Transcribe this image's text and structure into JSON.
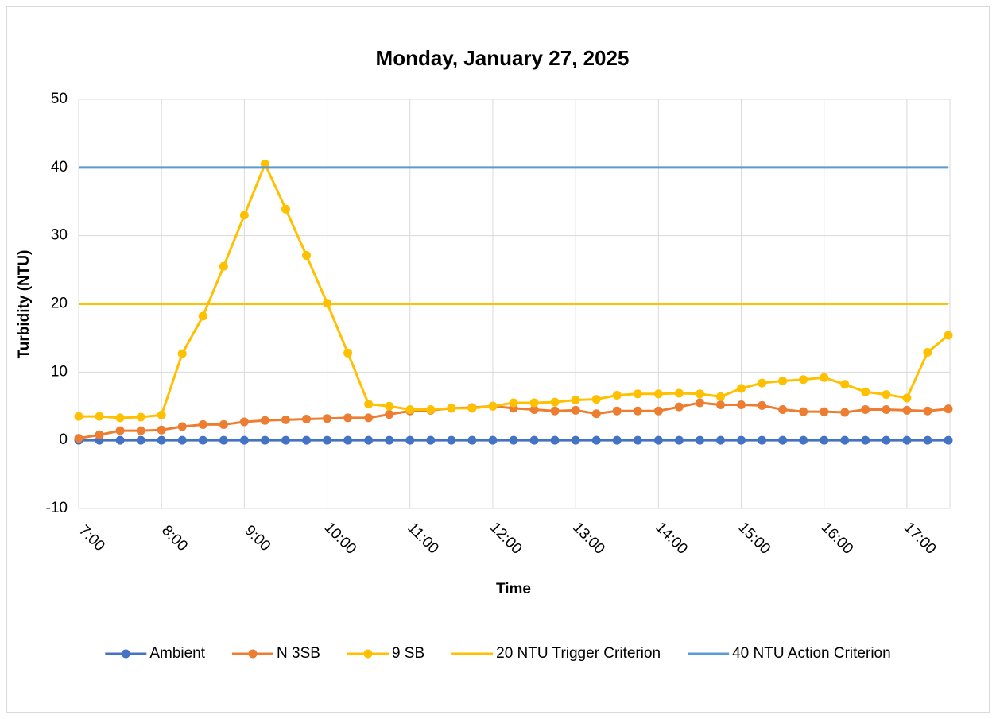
{
  "chart_data": {
    "type": "line",
    "title": "Monday, January 27, 2025",
    "x_label": "Time",
    "y_label": "Turbidity (NTU)",
    "x": [
      7,
      7.25,
      7.5,
      7.75,
      8,
      8.25,
      8.5,
      8.75,
      9,
      9.25,
      9.5,
      9.75,
      10,
      10.25,
      10.5,
      10.75,
      11,
      11.25,
      11.5,
      11.75,
      12,
      12.25,
      12.5,
      12.75,
      13,
      13.25,
      13.5,
      13.75,
      14,
      14.25,
      14.5,
      14.75,
      15,
      15.25,
      15.5,
      15.75,
      16,
      16.25,
      16.5,
      16.75,
      17,
      17.25,
      17.5
    ],
    "xlim": [
      7,
      17.5
    ],
    "xticks": [
      {
        "value": 7,
        "label": "7:00"
      },
      {
        "value": 8,
        "label": "8:00"
      },
      {
        "value": 9,
        "label": "9:00"
      },
      {
        "value": 10,
        "label": "10:00"
      },
      {
        "value": 11,
        "label": "11:00"
      },
      {
        "value": 12,
        "label": "12:00"
      },
      {
        "value": 13,
        "label": "13:00"
      },
      {
        "value": 14,
        "label": "14:00"
      },
      {
        "value": 15,
        "label": "15:00"
      },
      {
        "value": 16,
        "label": "16:00"
      },
      {
        "value": 17,
        "label": "17:00"
      }
    ],
    "ylim": [
      -10,
      50
    ],
    "yticks": [
      -10,
      0,
      10,
      20,
      30,
      40,
      50
    ],
    "grid": true,
    "legend": "bottom",
    "series": [
      {
        "name": "Ambient",
        "color": "#4472c4",
        "marker": true,
        "values": [
          0,
          0,
          0,
          0,
          0,
          0,
          0,
          0,
          0,
          0,
          0,
          0,
          0,
          0,
          0,
          0,
          0,
          0,
          0,
          0,
          0,
          0,
          0,
          0,
          0,
          0,
          0,
          0,
          0,
          0,
          0,
          0,
          0,
          0,
          0,
          0,
          0,
          0,
          0,
          0,
          0,
          0,
          0
        ]
      },
      {
        "name": "N 3SB",
        "color": "#ed7d31",
        "marker": true,
        "values": [
          0.3,
          0.8,
          1.4,
          1.4,
          1.5,
          2.0,
          2.3,
          2.3,
          2.7,
          2.9,
          3.0,
          3.1,
          3.2,
          3.3,
          3.3,
          3.8,
          4.3,
          4.4,
          4.7,
          4.8,
          5.0,
          4.7,
          4.5,
          4.3,
          4.4,
          3.9,
          4.3,
          4.3,
          4.3,
          4.9,
          5.5,
          5.2,
          5.2,
          5.1,
          4.5,
          4.2,
          4.2,
          4.1,
          4.5,
          4.5,
          4.4,
          4.3,
          4.6
        ]
      },
      {
        "name": "9 SB",
        "color": "#ffc000",
        "marker": true,
        "values": [
          3.5,
          3.5,
          3.3,
          3.4,
          3.7,
          12.7,
          18.2,
          25.5,
          33.0,
          40.5,
          33.9,
          27.1,
          20.1,
          12.8,
          5.3,
          5.0,
          4.5,
          4.5,
          4.7,
          4.7,
          5.0,
          5.5,
          5.5,
          5.6,
          5.9,
          6.0,
          6.6,
          6.8,
          6.8,
          6.9,
          6.8,
          6.4,
          7.6,
          8.4,
          8.7,
          8.9,
          9.2,
          8.2,
          7.1,
          6.7,
          6.2,
          12.9,
          15.4
        ]
      },
      {
        "name": "20 NTU Trigger Criterion",
        "color": "#ffc000",
        "marker": false,
        "values": [
          20,
          20,
          20,
          20,
          20,
          20,
          20,
          20,
          20,
          20,
          20,
          20,
          20,
          20,
          20,
          20,
          20,
          20,
          20,
          20,
          20,
          20,
          20,
          20,
          20,
          20,
          20,
          20,
          20,
          20,
          20,
          20,
          20,
          20,
          20,
          20,
          20,
          20,
          20,
          20,
          20,
          20,
          20
        ]
      },
      {
        "name": "40 NTU Action Criterion",
        "color": "#5b9bd5",
        "marker": false,
        "values": [
          40,
          40,
          40,
          40,
          40,
          40,
          40,
          40,
          40,
          40,
          40,
          40,
          40,
          40,
          40,
          40,
          40,
          40,
          40,
          40,
          40,
          40,
          40,
          40,
          40,
          40,
          40,
          40,
          40,
          40,
          40,
          40,
          40,
          40,
          40,
          40,
          40,
          40,
          40,
          40,
          40,
          40,
          40
        ]
      }
    ]
  }
}
